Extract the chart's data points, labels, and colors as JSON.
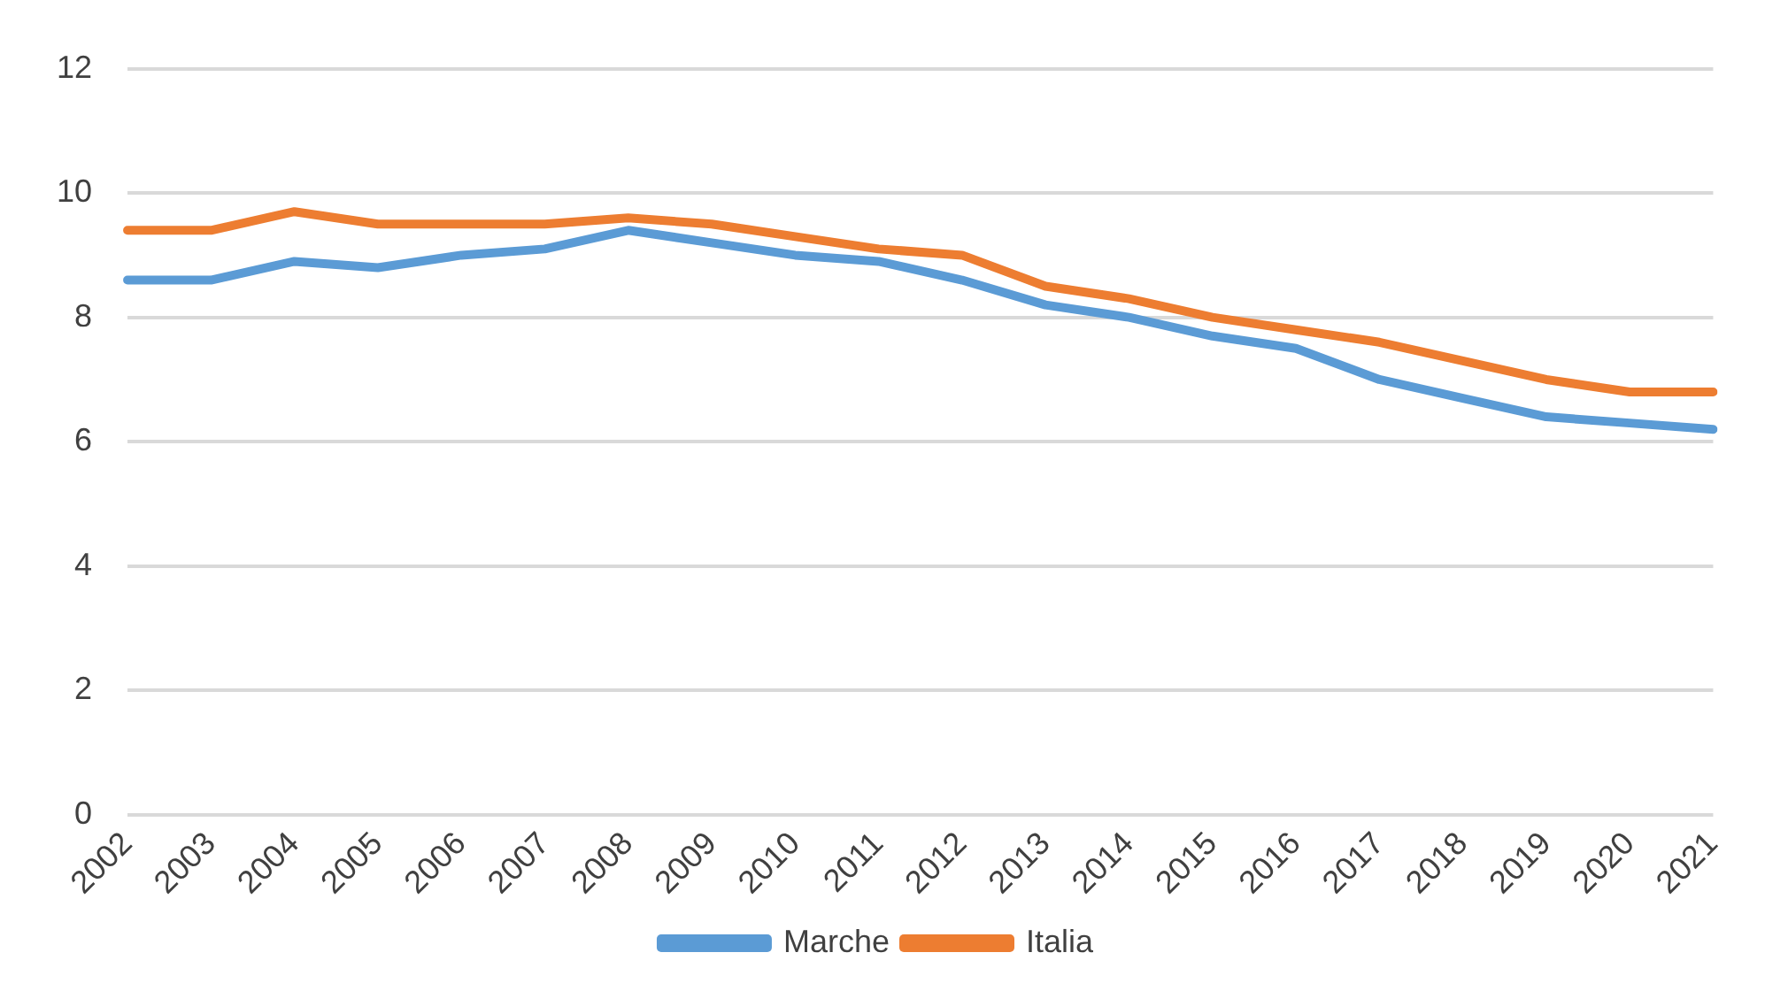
{
  "chart_data": {
    "type": "line",
    "categories": [
      "2002",
      "2003",
      "2004",
      "2005",
      "2006",
      "2007",
      "2008",
      "2009",
      "2010",
      "2011",
      "2012",
      "2013",
      "2014",
      "2015",
      "2016",
      "2017",
      "2018",
      "2019",
      "2020",
      "2021"
    ],
    "series": [
      {
        "name": "Marche",
        "color": "#5b9bd5",
        "values": [
          8.6,
          8.6,
          8.9,
          8.8,
          9.0,
          9.1,
          9.4,
          9.2,
          9.0,
          8.9,
          8.6,
          8.2,
          8.0,
          7.7,
          7.5,
          7.0,
          6.7,
          6.4,
          6.3,
          6.2
        ]
      },
      {
        "name": "Italia",
        "color": "#ed7d31",
        "values": [
          9.4,
          9.4,
          9.7,
          9.5,
          9.5,
          9.5,
          9.6,
          9.5,
          9.3,
          9.1,
          9.0,
          8.5,
          8.3,
          8.0,
          7.8,
          7.6,
          7.3,
          7.0,
          6.8,
          6.8
        ]
      }
    ],
    "ylim": [
      0,
      12
    ],
    "yticks": [
      0,
      2,
      4,
      6,
      8,
      10,
      12
    ],
    "grid": "y",
    "legend": "bottom",
    "marker": "none",
    "line_style": "solid"
  }
}
